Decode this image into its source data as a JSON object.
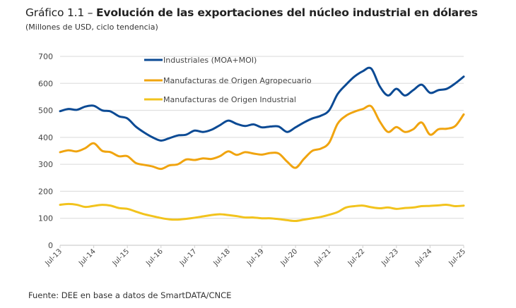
{
  "header": {
    "title_prefix": "Gráfico 1.1 – ",
    "title_main": "Evolución de las exportaciones del núcleo industrial en dólares",
    "subtitle": "(Millones de USD, ciclo tendencia)"
  },
  "footer": {
    "source": "Fuente: DEE en base a datos de SmartDATA/CNCE"
  },
  "chart_data": {
    "type": "line",
    "title": "Gráfico 1.1 – Evolución de las exportaciones del núcleo industrial en dólares",
    "subtitle": "(Millones de USD, ciclo tendencia)",
    "xlabel": "",
    "ylabel": "",
    "ylim": [
      0,
      700
    ],
    "yticks": [
      0,
      100,
      200,
      300,
      400,
      500,
      600,
      700
    ],
    "xtick_labels": [
      "Jul-13",
      "Jul-14",
      "Jul-15",
      "Jul-16",
      "Jul-17",
      "Jul-18",
      "Jul-19",
      "Jul-20",
      "Jul-21",
      "Jul-22",
      "Jul-23",
      "Jul-24",
      "Jul-25"
    ],
    "x_frequency": "quarterly from Jul-13 to Jul-25",
    "grid": "horizontal",
    "legend_position": "top-center",
    "x": [
      "Jul-13",
      "Oct-13",
      "Jan-14",
      "Apr-14",
      "Jul-14",
      "Oct-14",
      "Jan-15",
      "Apr-15",
      "Jul-15",
      "Oct-15",
      "Jan-16",
      "Apr-16",
      "Jul-16",
      "Oct-16",
      "Jan-17",
      "Apr-17",
      "Jul-17",
      "Oct-17",
      "Jan-18",
      "Apr-18",
      "Jul-18",
      "Oct-18",
      "Jan-19",
      "Apr-19",
      "Jul-19",
      "Oct-19",
      "Jan-20",
      "Apr-20",
      "Jul-20",
      "Oct-20",
      "Jan-21",
      "Apr-21",
      "Jul-21",
      "Oct-21",
      "Jan-22",
      "Apr-22",
      "Jul-22",
      "Oct-22",
      "Jan-23",
      "Apr-23",
      "Jul-23",
      "Oct-23",
      "Jan-24",
      "Apr-24",
      "Jul-24",
      "Oct-24",
      "Jan-25",
      "Apr-25",
      "Jul-25"
    ],
    "series": [
      {
        "name": "Industriales (MOA+MOI)",
        "color": "#0b4a94",
        "values": [
          497,
          505,
          502,
          514,
          517,
          500,
          496,
          478,
          470,
          440,
          418,
          400,
          388,
          397,
          407,
          410,
          425,
          420,
          428,
          445,
          462,
          450,
          442,
          448,
          437,
          440,
          440,
          420,
          437,
          455,
          470,
          480,
          500,
          560,
          595,
          625,
          645,
          655,
          590,
          555,
          580,
          555,
          575,
          595,
          565,
          575,
          580,
          600,
          625
        ]
      },
      {
        "name": "Manufacturas de Origen Agropecuario",
        "color": "#f0a40f",
        "values": [
          345,
          352,
          348,
          360,
          378,
          350,
          345,
          330,
          330,
          305,
          298,
          292,
          283,
          296,
          300,
          318,
          316,
          322,
          320,
          330,
          348,
          335,
          345,
          340,
          336,
          342,
          340,
          310,
          287,
          320,
          350,
          358,
          380,
          450,
          480,
          495,
          505,
          515,
          460,
          420,
          438,
          420,
          430,
          455,
          410,
          430,
          432,
          442,
          485
        ]
      },
      {
        "name": "Manufacturas de Origen Industrial",
        "color": "#f2c31d",
        "values": [
          150,
          153,
          150,
          142,
          146,
          150,
          147,
          138,
          135,
          125,
          115,
          108,
          101,
          96,
          95,
          98,
          102,
          107,
          112,
          115,
          112,
          108,
          103,
          103,
          100,
          100,
          97,
          93,
          90,
          95,
          100,
          105,
          113,
          123,
          140,
          145,
          147,
          141,
          137,
          140,
          135,
          138,
          140,
          145,
          146,
          148,
          150,
          145,
          147
        ]
      }
    ]
  }
}
